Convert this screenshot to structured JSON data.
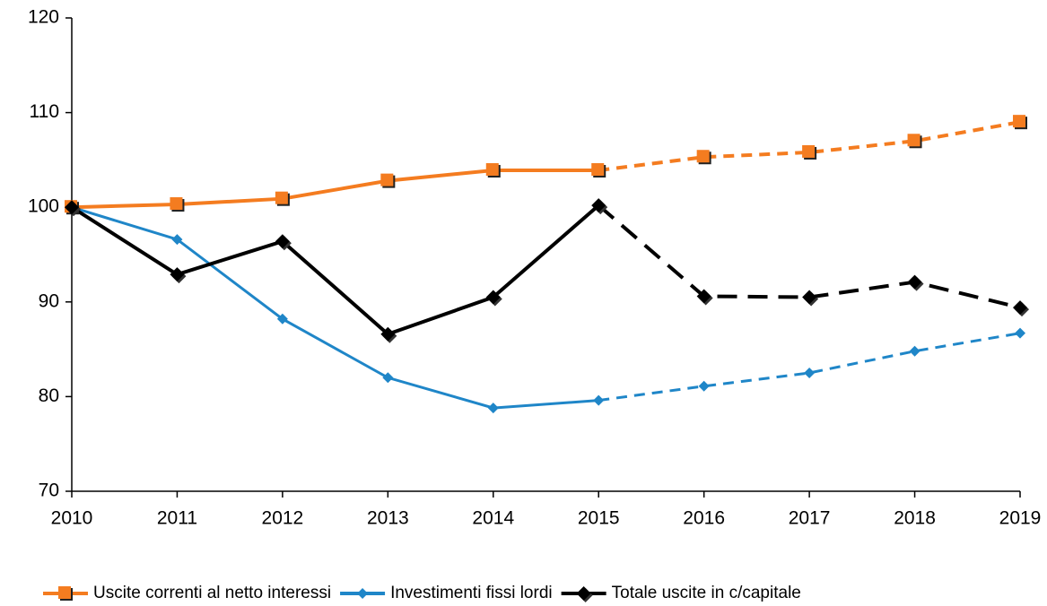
{
  "chart_data": {
    "type": "line",
    "categories": [
      "2010",
      "2011",
      "2012",
      "2013",
      "2014",
      "2015",
      "2016",
      "2017",
      "2018",
      "2019"
    ],
    "series": [
      {
        "name": "Uscite correnti al netto interessi",
        "color": "#f47c20",
        "marker": "square",
        "values": [
          100,
          100.3,
          100.9,
          102.8,
          103.9,
          103.9,
          105.3,
          105.8,
          107,
          109
        ]
      },
      {
        "name": "Investimenti fissi lordi",
        "color": "#1f86c8",
        "marker": "diamond-small",
        "values": [
          100,
          96.6,
          88.2,
          82.0,
          78.8,
          79.6,
          81.1,
          82.5,
          84.8,
          86.7
        ]
      },
      {
        "name": "Totale uscite in c/capitale",
        "color": "#000000",
        "marker": "diamond",
        "values": [
          100,
          92.9,
          96.4,
          86.6,
          90.5,
          100.2,
          90.6,
          90.5,
          92.1,
          89.4
        ]
      }
    ],
    "dash_from": 5,
    "ylim": [
      70,
      120
    ],
    "yticks": [
      70,
      80,
      90,
      100,
      110,
      120
    ],
    "grid": false,
    "legend": "bottom"
  }
}
